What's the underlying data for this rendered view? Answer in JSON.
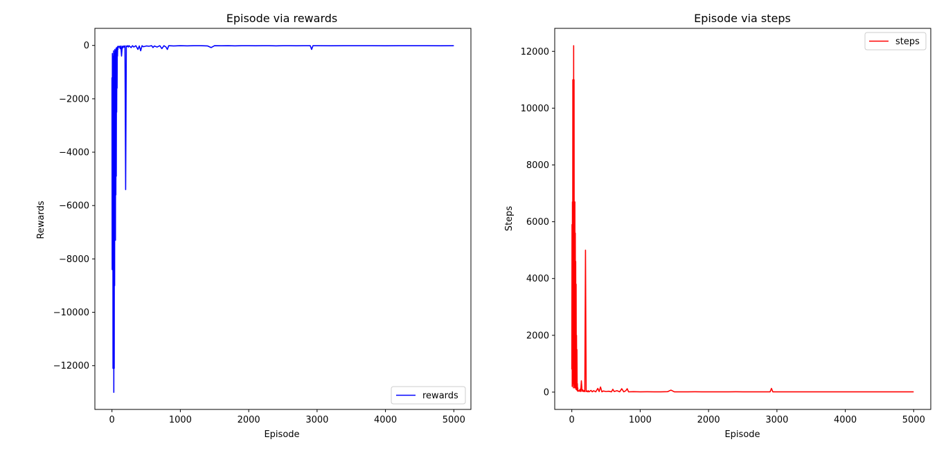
{
  "chart_data": [
    {
      "type": "line",
      "title": "Episode via rewards",
      "xlabel": "Episode",
      "ylabel": "Rewards",
      "xlim": [
        -250,
        5250
      ],
      "ylim": [
        -13640,
        640
      ],
      "xticks": [
        0,
        1000,
        2000,
        3000,
        4000,
        5000
      ],
      "xtick_labels": [
        "0",
        "1000",
        "2000",
        "3000",
        "4000",
        "5000"
      ],
      "yticks": [
        0,
        -2000,
        -4000,
        -6000,
        -8000,
        -10000,
        -12000
      ],
      "ytick_labels": [
        "0",
        "−2000",
        "−4000",
        "−6000",
        "−8000",
        "−10000",
        "−12000"
      ],
      "grid": false,
      "legend_position": "lower-right",
      "series": [
        {
          "name": "rewards",
          "color": "#0000ff",
          "x": [
            0,
            3,
            6,
            9,
            12,
            15,
            18,
            21,
            24,
            27,
            30,
            33,
            36,
            39,
            42,
            45,
            48,
            51,
            54,
            57,
            60,
            63,
            66,
            69,
            72,
            75,
            78,
            81,
            84,
            87,
            90,
            100,
            110,
            120,
            130,
            140,
            150,
            160,
            170,
            180,
            190,
            200,
            210,
            220,
            230,
            240,
            250,
            280,
            300,
            320,
            350,
            380,
            400,
            420,
            440,
            460,
            500,
            540,
            580,
            600,
            620,
            660,
            700,
            730,
            760,
            790,
            810,
            830,
            900,
            1000,
            1100,
            1200,
            1300,
            1400,
            1450,
            1500,
            1600,
            1700,
            1800,
            1900,
            2000,
            2100,
            2200,
            2300,
            2400,
            2500,
            2600,
            2700,
            2800,
            2900,
            2920,
            2940,
            3000,
            3200,
            3400,
            3600,
            3800,
            4000,
            4200,
            4400,
            4600,
            4800,
            5000
          ],
          "y": [
            -1200,
            -8400,
            -300,
            -6800,
            -600,
            -12100,
            -400,
            -8000,
            -200,
            -13000,
            -500,
            -12100,
            -300,
            -9000,
            -150,
            -6800,
            -400,
            -7300,
            -200,
            -5600,
            -100,
            -4900,
            -300,
            -2500,
            -80,
            -1600,
            -60,
            -400,
            -40,
            -150,
            -30,
            -60,
            -30,
            -120,
            -20,
            -400,
            -30,
            -90,
            -20,
            -60,
            -15,
            -5400,
            -20,
            -40,
            -10,
            -60,
            -10,
            -80,
            -10,
            -60,
            -10,
            -150,
            -20,
            -200,
            -10,
            -50,
            -20,
            -30,
            -10,
            -80,
            -20,
            -60,
            -10,
            -120,
            -10,
            -60,
            -150,
            -10,
            -20,
            -10,
            -15,
            -10,
            -10,
            -20,
            -80,
            -10,
            -12,
            -10,
            -15,
            -10,
            -10,
            -12,
            -10,
            -10,
            -15,
            -10,
            -10,
            -12,
            -10,
            -10,
            -150,
            -10,
            -10,
            -12,
            -10,
            -10,
            -10,
            -12,
            -10,
            -10,
            -10,
            -12,
            -10
          ]
        }
      ]
    },
    {
      "type": "line",
      "title": "Episode via steps",
      "xlabel": "Episode",
      "ylabel": "Steps",
      "xlim": [
        -250,
        5250
      ],
      "ylim": [
        -610,
        12810
      ],
      "xticks": [
        0,
        1000,
        2000,
        3000,
        4000,
        5000
      ],
      "xtick_labels": [
        "0",
        "1000",
        "2000",
        "3000",
        "4000",
        "5000"
      ],
      "yticks": [
        0,
        2000,
        4000,
        6000,
        8000,
        10000,
        12000
      ],
      "ytick_labels": [
        "0",
        "2000",
        "4000",
        "6000",
        "8000",
        "10000",
        "12000"
      ],
      "grid": false,
      "legend_position": "upper-right",
      "series": [
        {
          "name": "steps",
          "color": "#ff0000",
          "x": [
            0,
            3,
            6,
            9,
            12,
            15,
            18,
            21,
            24,
            27,
            30,
            33,
            36,
            39,
            42,
            45,
            48,
            51,
            54,
            57,
            60,
            63,
            66,
            69,
            72,
            75,
            78,
            81,
            84,
            87,
            90,
            100,
            110,
            120,
            130,
            140,
            150,
            160,
            170,
            180,
            190,
            200,
            210,
            220,
            230,
            240,
            250,
            280,
            300,
            320,
            350,
            380,
            400,
            420,
            440,
            460,
            500,
            540,
            580,
            600,
            620,
            660,
            700,
            730,
            760,
            790,
            810,
            830,
            900,
            1000,
            1100,
            1200,
            1300,
            1400,
            1450,
            1500,
            1600,
            1700,
            1800,
            1900,
            2000,
            2100,
            2200,
            2300,
            2400,
            2500,
            2600,
            2700,
            2800,
            2900,
            2920,
            2940,
            3000,
            3200,
            3400,
            3600,
            3800,
            4000,
            4200,
            4400,
            4600,
            4800,
            5000
          ],
          "y": [
            800,
            5900,
            200,
            6700,
            400,
            11000,
            300,
            9000,
            150,
            12200,
            400,
            11000,
            250,
            6200,
            150,
            6700,
            300,
            5600,
            150,
            4600,
            100,
            3800,
            250,
            2000,
            80,
            1500,
            60,
            300,
            40,
            150,
            30,
            50,
            30,
            100,
            20,
            400,
            30,
            80,
            20,
            50,
            15,
            5000,
            20,
            40,
            10,
            50,
            10,
            60,
            10,
            50,
            10,
            130,
            20,
            180,
            10,
            40,
            20,
            30,
            10,
            100,
            20,
            50,
            10,
            120,
            10,
            50,
            120,
            10,
            15,
            10,
            12,
            10,
            10,
            15,
            70,
            10,
            10,
            10,
            12,
            10,
            10,
            10,
            10,
            10,
            12,
            10,
            10,
            10,
            10,
            10,
            130,
            10,
            10,
            10,
            10,
            10,
            10,
            10,
            10,
            10,
            10,
            10,
            10
          ]
        }
      ]
    }
  ]
}
